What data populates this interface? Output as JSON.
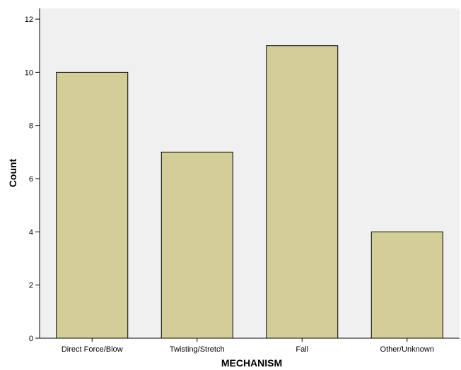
{
  "chart_data": {
    "type": "bar",
    "categories": [
      "Direct Force/Blow",
      "Twisting/Stretch",
      "Fall",
      "Other/Unknown"
    ],
    "values": [
      10,
      7,
      11,
      4
    ],
    "title": "",
    "xlabel": "MECHANISM",
    "ylabel": "Count",
    "ylim": [
      0,
      12.4
    ],
    "yticks": [
      0,
      2,
      4,
      6,
      8,
      10,
      12
    ],
    "grid": false,
    "legend": "none",
    "colors": {
      "plot_background": "#f0f0f0",
      "bar_fill": "#d3ce98",
      "bar_stroke": "#000000",
      "axis": "#000000"
    }
  }
}
